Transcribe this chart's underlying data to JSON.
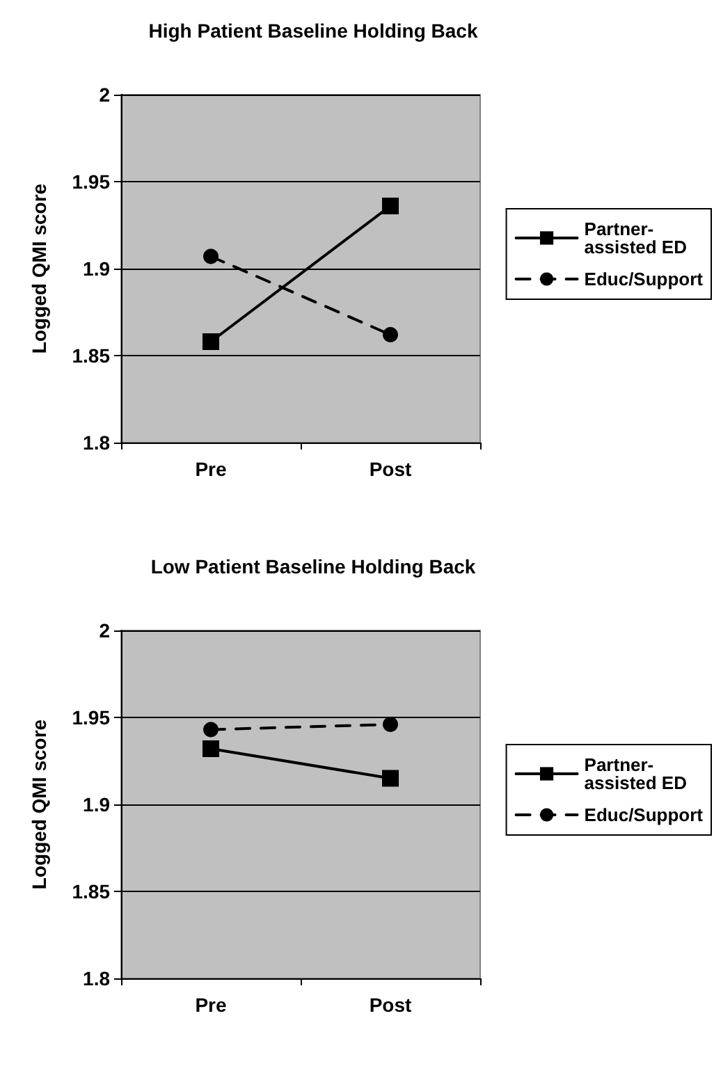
{
  "chart_data": [
    {
      "type": "line",
      "title": "High Patient Baseline Holding Back",
      "ylabel": "Logged QMI score",
      "categories": [
        "Pre",
        "Post"
      ],
      "series": [
        {
          "name": "Partner-assisted ED",
          "color": "#000000",
          "values": [
            1.858,
            1.936
          ],
          "marker": "square",
          "line_style": "solid"
        },
        {
          "name": "Educ/Support",
          "color": "#000000",
          "values": [
            1.907,
            1.862
          ],
          "marker": "circle",
          "line_style": "dashed"
        }
      ],
      "ylim": [
        1.8,
        2
      ],
      "yticks": [
        1.8,
        1.85,
        1.9,
        1.95,
        2
      ],
      "grid": "y",
      "legend": "right"
    },
    {
      "type": "line",
      "title": "Low Patient Baseline Holding Back",
      "ylabel": "Logged QMI score",
      "categories": [
        "Pre",
        "Post"
      ],
      "series": [
        {
          "name": "Partner-assisted ED",
          "color": "#000000",
          "values": [
            1.932,
            1.915
          ],
          "marker": "square",
          "line_style": "solid"
        },
        {
          "name": "Educ/Support",
          "color": "#000000",
          "values": [
            1.943,
            1.946
          ],
          "marker": "circle",
          "line_style": "dashed"
        }
      ],
      "ylim": [
        1.8,
        2
      ],
      "yticks": [
        1.8,
        1.85,
        1.9,
        1.95,
        2
      ],
      "grid": "y",
      "legend": "right"
    }
  ]
}
